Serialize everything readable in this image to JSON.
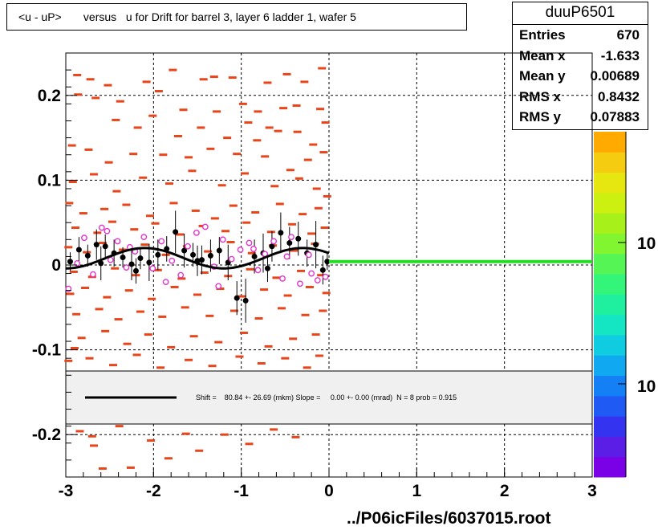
{
  "title": "<u - uP>       versus   u for Drift for barrel 3, layer 6 ladder 1, wafer 5",
  "stats": {
    "name": "duuP6501",
    "rows": [
      {
        "label": "Entries",
        "value": "670"
      },
      {
        "label": "Mean x",
        "value": "-1.633"
      },
      {
        "label": "Mean y",
        "value": "0.00689"
      },
      {
        "label": "RMS x",
        "value": "0.8432"
      },
      {
        "label": "RMS y",
        "value": "0.07883"
      }
    ]
  },
  "fit_legend": "Shift =    80.84 +- 26.69 (mkm) Slope =     0.00 +- 0.00 (mrad)  N = 8 prob = 0.915",
  "footer": "../P06icFiles/6037015.root",
  "colors": {
    "hist": "#e8461a",
    "profile": "#000000",
    "circles": "#e633cc",
    "fit_line": "#22dd22"
  },
  "palette": [
    "#7a00e6",
    "#5a1ee6",
    "#3333f0",
    "#1f5af5",
    "#1480f5",
    "#10a8f0",
    "#10cce0",
    "#14e6c4",
    "#1ef0a0",
    "#33f57a",
    "#55f555",
    "#80f530",
    "#a8f01a",
    "#ccf010",
    "#e6e610",
    "#f5cc10",
    "#ffaa00"
  ],
  "palette_labels": [
    "10",
    "10"
  ],
  "chart_data": {
    "type": "scatter",
    "title": "<u - uP>       versus   u for Drift for barrel 3, layer 6 ladder 1, wafer 5",
    "xlim": [
      -3,
      3
    ],
    "ylim": [
      -0.25,
      0.25
    ],
    "x_ticks": [
      -3,
      -2,
      -1,
      0,
      1,
      2,
      3
    ],
    "y_ticks": [
      -0.2,
      -0.1,
      0,
      0.1,
      0.2
    ],
    "x_tick_labels": [
      "-3",
      "-2",
      "-1",
      "0",
      "1",
      "2",
      "3"
    ],
    "y_tick_labels": [
      "-0.2",
      "-0.1",
      "0",
      "0.1",
      "0.2"
    ],
    "grid": true,
    "histogram_cells": [
      [
        -2.87,
        0.224
      ],
      [
        -2.72,
        0.219
      ],
      [
        -2.52,
        0.212
      ],
      [
        -2.08,
        0.216
      ],
      [
        -1.78,
        0.23
      ],
      [
        -1.43,
        0.219
      ],
      [
        -1.31,
        0.222
      ],
      [
        -1.1,
        0.221
      ],
      [
        -0.7,
        0.215
      ],
      [
        -0.48,
        0.225
      ],
      [
        -0.28,
        0.216
      ],
      [
        -0.08,
        0.232
      ],
      [
        -2.86,
        0.201
      ],
      [
        -2.66,
        0.197
      ],
      [
        -2.38,
        0.193
      ],
      [
        -1.94,
        0.205
      ],
      [
        -1.66,
        0.183
      ],
      [
        -1.28,
        0.181
      ],
      [
        -0.98,
        0.19
      ],
      [
        -0.81,
        0.181
      ],
      [
        -0.52,
        0.185
      ],
      [
        -0.37,
        0.188
      ],
      [
        -0.1,
        0.184
      ],
      [
        -0.58,
        0.158
      ],
      [
        -2.43,
        0.171
      ],
      [
        -2.18,
        0.162
      ],
      [
        -2.01,
        0.176
      ],
      [
        -1.72,
        0.152
      ],
      [
        -1.46,
        0.162
      ],
      [
        -1.16,
        0.15
      ],
      [
        -0.92,
        0.168
      ],
      [
        -0.68,
        0.162
      ],
      [
        -0.36,
        0.157
      ],
      [
        -0.18,
        0.142
      ],
      [
        -0.04,
        0.168
      ],
      [
        -0.82,
        0.147
      ],
      [
        -2.93,
        0.141
      ],
      [
        -2.74,
        0.136
      ],
      [
        -2.51,
        0.121
      ],
      [
        -2.23,
        0.131
      ],
      [
        -1.89,
        0.13
      ],
      [
        -1.6,
        0.127
      ],
      [
        -1.35,
        0.137
      ],
      [
        -1.05,
        0.131
      ],
      [
        -0.73,
        0.128
      ],
      [
        -0.44,
        0.112
      ],
      [
        -0.24,
        0.124
      ],
      [
        -0.06,
        0.133
      ],
      [
        -2.92,
        0.098
      ],
      [
        -2.68,
        0.107
      ],
      [
        -2.42,
        0.087
      ],
      [
        -2.12,
        0.103
      ],
      [
        -1.82,
        0.096
      ],
      [
        -1.56,
        0.111
      ],
      [
        -1.22,
        0.094
      ],
      [
        -0.96,
        0.108
      ],
      [
        -0.62,
        0.093
      ],
      [
        -0.34,
        0.102
      ],
      [
        -0.14,
        0.09
      ],
      [
        -0.02,
        0.081
      ],
      [
        -2.96,
        0.073
      ],
      [
        -2.8,
        0.061
      ],
      [
        -2.56,
        0.066
      ],
      [
        -2.31,
        0.071
      ],
      [
        -2.04,
        0.058
      ],
      [
        -1.77,
        0.073
      ],
      [
        -1.52,
        0.064
      ],
      [
        -1.3,
        0.055
      ],
      [
        -1.09,
        0.07
      ],
      [
        -0.84,
        0.062
      ],
      [
        -0.56,
        0.072
      ],
      [
        -0.3,
        0.06
      ],
      [
        -0.12,
        0.067
      ],
      [
        -2.89,
        0.044
      ],
      [
        -2.64,
        0.038
      ],
      [
        -2.47,
        0.051
      ],
      [
        -2.22,
        0.042
      ],
      [
        -1.98,
        0.049
      ],
      [
        -1.7,
        0.036
      ],
      [
        -1.44,
        0.046
      ],
      [
        -1.18,
        0.04
      ],
      [
        -0.94,
        0.05
      ],
      [
        -0.66,
        0.039
      ],
      [
        -0.42,
        0.048
      ],
      [
        -0.2,
        0.037
      ],
      [
        -0.05,
        0.044
      ],
      [
        -2.97,
        0.021
      ],
      [
        -2.76,
        0.015
      ],
      [
        -2.58,
        0.026
      ],
      [
        -2.35,
        0.018
      ],
      [
        -2.1,
        0.024
      ],
      [
        -1.86,
        0.012
      ],
      [
        -1.62,
        0.022
      ],
      [
        -1.38,
        0.016
      ],
      [
        -1.12,
        0.027
      ],
      [
        -0.88,
        0.014
      ],
      [
        -0.64,
        0.023
      ],
      [
        -0.4,
        0.017
      ],
      [
        -0.16,
        0.025
      ],
      [
        -2.91,
        -0.008
      ],
      [
        -2.7,
        -0.014
      ],
      [
        -2.44,
        -0.004
      ],
      [
        -2.2,
        -0.012
      ],
      [
        -1.95,
        -0.006
      ],
      [
        -1.68,
        -0.016
      ],
      [
        -1.42,
        -0.009
      ],
      [
        -1.15,
        -0.013
      ],
      [
        -0.9,
        -0.005
      ],
      [
        -0.6,
        -0.015
      ],
      [
        -0.32,
        -0.007
      ],
      [
        -0.09,
        -0.012
      ],
      [
        -2.95,
        -0.034
      ],
      [
        -2.78,
        -0.027
      ],
      [
        -2.53,
        -0.038
      ],
      [
        -2.28,
        -0.03
      ],
      [
        -2.02,
        -0.04
      ],
      [
        -1.76,
        -0.026
      ],
      [
        -1.5,
        -0.035
      ],
      [
        -1.24,
        -0.028
      ],
      [
        -0.99,
        -0.037
      ],
      [
        -0.74,
        -0.029
      ],
      [
        -0.47,
        -0.036
      ],
      [
        -0.22,
        -0.026
      ],
      [
        -0.03,
        -0.033
      ],
      [
        -2.88,
        -0.058
      ],
      [
        -2.62,
        -0.052
      ],
      [
        -2.4,
        -0.064
      ],
      [
        -2.15,
        -0.055
      ],
      [
        -1.9,
        -0.061
      ],
      [
        -1.64,
        -0.05
      ],
      [
        -1.36,
        -0.06
      ],
      [
        -1.08,
        -0.054
      ],
      [
        -0.8,
        -0.063
      ],
      [
        -0.54,
        -0.051
      ],
      [
        -0.27,
        -0.059
      ],
      [
        -0.07,
        -0.054
      ],
      [
        -2.82,
        -0.086
      ],
      [
        -2.55,
        -0.078
      ],
      [
        -2.3,
        -0.093
      ],
      [
        -2.06,
        -0.082
      ],
      [
        -1.8,
        -0.097
      ],
      [
        -1.54,
        -0.084
      ],
      [
        -1.26,
        -0.091
      ],
      [
        -0.97,
        -0.08
      ],
      [
        -0.69,
        -0.096
      ],
      [
        -0.41,
        -0.087
      ],
      [
        -0.15,
        -0.082
      ],
      [
        -2.9,
        -0.098
      ],
      [
        -2.73,
        -0.11
      ],
      [
        -2.46,
        -0.118
      ],
      [
        -2.19,
        -0.106
      ],
      [
        -1.92,
        -0.121
      ],
      [
        -1.6,
        -0.112
      ],
      [
        -1.33,
        -0.119
      ],
      [
        -1.02,
        -0.108
      ],
      [
        -0.77,
        -0.116
      ],
      [
        -0.5,
        -0.11
      ],
      [
        -0.25,
        -0.121
      ],
      [
        -2.97,
        -0.113
      ],
      [
        -0.11,
        -0.107
      ],
      [
        -2.84,
        -0.196
      ],
      [
        -2.68,
        -0.213
      ],
      [
        -2.39,
        -0.19
      ],
      [
        -2.26,
        -0.239
      ],
      [
        -2.03,
        -0.207
      ],
      [
        -1.83,
        -0.228
      ],
      [
        -1.63,
        -0.199
      ],
      [
        -1.48,
        -0.219
      ],
      [
        -1.19,
        -0.2
      ],
      [
        -0.91,
        -0.211
      ],
      [
        -0.63,
        -0.194
      ],
      [
        -0.38,
        -0.203
      ],
      [
        -2.58,
        -0.24
      ],
      [
        -2.7,
        -0.202
      ]
    ],
    "series": [
      {
        "values": [
          [
            -2.95,
            0.004,
            0.011
          ],
          [
            -2.85,
            0.018,
            0.015
          ],
          [
            -2.75,
            0.011,
            0.013
          ],
          [
            -2.65,
            0.024,
            0.018
          ],
          [
            -2.55,
            0.022,
            0.014
          ],
          [
            -2.45,
            0.014,
            0.016
          ],
          [
            -2.35,
            0.009,
            0.012
          ],
          [
            -2.25,
            0.001,
            0.019
          ],
          [
            -2.15,
            0.008,
            0.013
          ],
          [
            -2.05,
            0.003,
            0.022
          ],
          [
            -1.95,
            0.012,
            0.018
          ],
          [
            -1.85,
            0.019,
            0.015
          ],
          [
            -1.75,
            0.039,
            0.025
          ],
          [
            -1.65,
            0.017,
            0.02
          ],
          [
            -1.55,
            0.012,
            0.014
          ],
          [
            -1.45,
            0.006,
            0.017
          ],
          [
            -1.35,
            0.011,
            0.019
          ],
          [
            -1.25,
            0.017,
            0.016
          ],
          [
            -1.15,
            0.003,
            0.021
          ],
          [
            -1.05,
            -0.039,
            0.02
          ],
          [
            -0.95,
            -0.042,
            0.026
          ],
          [
            -0.85,
            0.01,
            0.02
          ],
          [
            -0.75,
            0.014,
            0.023
          ],
          [
            -0.65,
            0.022,
            0.018
          ],
          [
            -0.55,
            0.038,
            0.024
          ],
          [
            -0.45,
            0.026,
            0.019
          ],
          [
            -0.35,
            0.031,
            0.02
          ],
          [
            -0.25,
            0.014,
            0.016
          ],
          [
            -0.15,
            0.024,
            0.028
          ],
          [
            -0.07,
            -0.006,
            0.017
          ],
          [
            -0.02,
            0.004,
            0.01
          ],
          [
            -2.6,
            0.002,
            0.02
          ],
          [
            -2.2,
            -0.007,
            0.015
          ],
          [
            -1.5,
            0.005,
            0.018
          ],
          [
            -0.7,
            -0.004,
            0.016
          ]
        ]
      },
      {
        "values": [
          [
            -2.97,
            -0.028
          ],
          [
            -2.87,
            0.002
          ],
          [
            -2.79,
            0.032
          ],
          [
            -2.69,
            -0.011
          ],
          [
            -2.59,
            0.044
          ],
          [
            -2.49,
            0.006
          ],
          [
            -2.41,
            0.028
          ],
          [
            -2.31,
            -0.003
          ],
          [
            -2.21,
            0.016
          ],
          [
            -2.11,
            0.033
          ],
          [
            -2.01,
            -0.004
          ],
          [
            -1.91,
            0.028
          ],
          [
            -1.79,
            0.005
          ],
          [
            -1.69,
            -0.012
          ],
          [
            -1.61,
            0.022
          ],
          [
            -1.51,
            0.038
          ],
          [
            -1.41,
            0.045
          ],
          [
            -1.31,
            -0.002
          ],
          [
            -1.21,
            0.03
          ],
          [
            -1.11,
            0.007
          ],
          [
            -1.01,
            0.018
          ],
          [
            -0.91,
            0.026
          ],
          [
            -0.81,
            -0.006
          ],
          [
            -0.73,
            0.013
          ],
          [
            -0.63,
            0.028
          ],
          [
            -0.53,
            -0.016
          ],
          [
            -0.43,
            0.033
          ],
          [
            -0.33,
            -0.022
          ],
          [
            -0.23,
            0.012
          ],
          [
            -0.13,
            -0.018
          ],
          [
            -0.04,
            -0.014
          ],
          [
            -2.53,
            0.04
          ],
          [
            -2.27,
            0.021
          ],
          [
            -1.86,
            -0.02
          ],
          [
            -1.26,
            -0.025
          ],
          [
            -0.86,
            0.019
          ],
          [
            -0.48,
            0.01
          ],
          [
            -0.2,
            -0.01
          ]
        ]
      }
    ],
    "fit_curve": {
      "from": -3,
      "to": 0,
      "offset": 0.008,
      "amplitude": 0.012,
      "period": 1.8
    },
    "fit_line": {
      "from": 0,
      "to": 3,
      "y": 0.004
    }
  }
}
